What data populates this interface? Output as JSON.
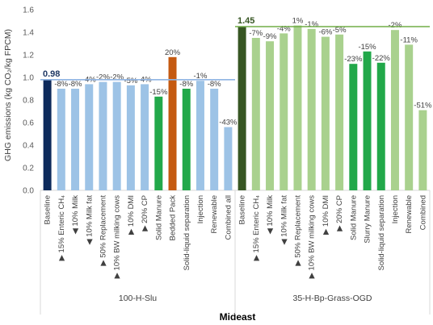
{
  "chart_data": {
    "type": "bar",
    "ylabel": "GHG emissions (kg CO₂/kg FPCM)",
    "xlabel": "Mideast",
    "ylim": [
      0,
      1.6
    ],
    "yticks": [
      "0.0",
      "0.2",
      "0.4",
      "0.6",
      "0.8",
      "1.0",
      "1.2",
      "1.4",
      "1.6"
    ],
    "grid": false,
    "panels": [
      {
        "name": "100-H-Slu",
        "reference_label": "0.98",
        "reference_value": 0.98,
        "reference_color": "#8fb4e3",
        "reference_text_color": "#1f3864",
        "categories": [
          "Baseline",
          "▶ 15% Enteric CH₄",
          "◀ 10% Milk",
          "◀ 10% Milk fat",
          "▶ 50% Replacement",
          "▶ 10% BW milking cows",
          "▶ 10% DMI",
          "▶ 20% CP",
          "Solid Manure",
          "Bedded Pack",
          "Solid-liquid separation",
          "Injection",
          "Renewable",
          "Combined all"
        ],
        "values": [
          0.98,
          0.9,
          0.9,
          0.94,
          0.96,
          0.96,
          0.93,
          0.94,
          0.83,
          1.18,
          0.9,
          0.97,
          0.9,
          0.56
        ],
        "labels": [
          "",
          "-8%",
          "-8%",
          "-4%",
          "-2%",
          "-2%",
          "-5%",
          "-4%",
          "-15%",
          "20%",
          "-8%",
          "-1%",
          "-8%",
          "-43%"
        ],
        "colors": [
          "#0d2a5c",
          "#9dc3e6",
          "#9dc3e6",
          "#9dc3e6",
          "#9dc3e6",
          "#9dc3e6",
          "#9dc3e6",
          "#9dc3e6",
          "#22a84a",
          "#c55a11",
          "#22a84a",
          "#9dc3e6",
          "#9dc3e6",
          "#9dc3e6"
        ]
      },
      {
        "name": "35-H-Bp-Grass-OGD",
        "reference_label": "1.45",
        "reference_value": 1.45,
        "reference_color": "#70ad47",
        "reference_text_color": "#375623",
        "categories": [
          "Baseline",
          "▶ 15% Enteric CH₄",
          "◀ 10% Milk",
          "◀ 10% Milk fat",
          "▶ 50% Replacement",
          "▶ 10% BW milking cows",
          "▶ 10% DMI",
          "▶ 20% CP",
          "Solid Manure",
          "Slurry Manure",
          "Solid-liquid separation",
          "Injection",
          "Renewable",
          "Combined"
        ],
        "values": [
          1.45,
          1.35,
          1.32,
          1.39,
          1.46,
          1.43,
          1.36,
          1.38,
          1.12,
          1.23,
          1.13,
          1.42,
          1.29,
          0.71
        ],
        "labels": [
          "",
          "-7%",
          "-9%",
          "-4%",
          "1%",
          "-1%",
          "-6%",
          "-5%",
          "-23%",
          "-15%",
          "-22%",
          "-2%",
          "-11%",
          "-51%"
        ],
        "colors": [
          "#375623",
          "#a9d18e",
          "#a9d18e",
          "#a9d18e",
          "#a9d18e",
          "#a9d18e",
          "#a9d18e",
          "#a9d18e",
          "#22a84a",
          "#22a84a",
          "#22a84a",
          "#a9d18e",
          "#a9d18e",
          "#a9d18e"
        ]
      }
    ]
  }
}
